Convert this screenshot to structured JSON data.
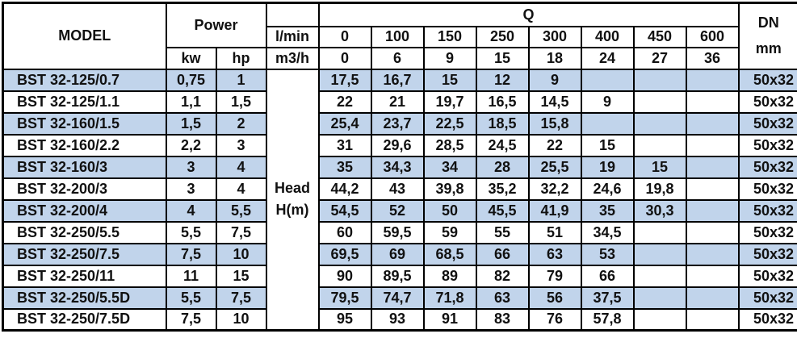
{
  "colors": {
    "row_alt": "#c1d4eb",
    "border": "#000000",
    "text": "#111111",
    "background": "#ffffff"
  },
  "table": {
    "header": {
      "model": "MODEL",
      "power": "Power",
      "kw": "kw",
      "hp": "hp",
      "lmin": "l/min",
      "m3h": "m3/h",
      "q": "Q",
      "dn": "DN\nmm",
      "head": "Head\nH(m)",
      "q_lmin": [
        "0",
        "100",
        "150",
        "250",
        "300",
        "400",
        "450",
        "600"
      ],
      "q_m3h": [
        "0",
        "6",
        "9",
        "15",
        "18",
        "24",
        "27",
        "36"
      ]
    },
    "rows": [
      {
        "model": "BST 32-125/0.7",
        "kw": "0,75",
        "hp": "1",
        "q": [
          "17,5",
          "16,7",
          "15",
          "12",
          "9",
          "",
          "",
          ""
        ],
        "dn": "50x32"
      },
      {
        "model": "BST 32-125/1.1",
        "kw": "1,1",
        "hp": "1,5",
        "q": [
          "22",
          "21",
          "19,7",
          "16,5",
          "14,5",
          "9",
          "",
          ""
        ],
        "dn": "50x32"
      },
      {
        "model": "BST 32-160/1.5",
        "kw": "1,5",
        "hp": "2",
        "q": [
          "25,4",
          "23,7",
          "22,5",
          "18,5",
          "15,8",
          "",
          "",
          ""
        ],
        "dn": "50x32"
      },
      {
        "model": "BST 32-160/2.2",
        "kw": "2,2",
        "hp": "3",
        "q": [
          "31",
          "29,6",
          "28,5",
          "24,5",
          "22",
          "15",
          "",
          ""
        ],
        "dn": "50x32"
      },
      {
        "model": "BST 32-160/3",
        "kw": "3",
        "hp": "4",
        "q": [
          "35",
          "34,3",
          "34",
          "28",
          "25,5",
          "19",
          "15",
          ""
        ],
        "dn": "50x32"
      },
      {
        "model": "BST 32-200/3",
        "kw": "3",
        "hp": "4",
        "q": [
          "44,2",
          "43",
          "39,8",
          "35,2",
          "32,2",
          "24,6",
          "19,8",
          ""
        ],
        "dn": "50x32"
      },
      {
        "model": "BST 32-200/4",
        "kw": "4",
        "hp": "5,5",
        "q": [
          "54,5",
          "52",
          "50",
          "45,5",
          "41,9",
          "35",
          "30,3",
          ""
        ],
        "dn": "50x32"
      },
      {
        "model": "BST 32-250/5.5",
        "kw": "5,5",
        "hp": "7,5",
        "q": [
          "60",
          "59,5",
          "59",
          "55",
          "51",
          "34,5",
          "",
          ""
        ],
        "dn": "50x32"
      },
      {
        "model": "BST 32-250/7.5",
        "kw": "7,5",
        "hp": "10",
        "q": [
          "69,5",
          "69",
          "68,5",
          "66",
          "63",
          "53",
          "",
          ""
        ],
        "dn": "50x32"
      },
      {
        "model": "BST 32-250/11",
        "kw": "11",
        "hp": "15",
        "q": [
          "90",
          "89,5",
          "89",
          "82",
          "79",
          "66",
          "",
          ""
        ],
        "dn": "50x32"
      },
      {
        "model": "BST 32-250/5.5D",
        "kw": "5,5",
        "hp": "7,5",
        "q": [
          "79,5",
          "74,7",
          "71,8",
          "63",
          "56",
          "37,5",
          "",
          ""
        ],
        "dn": "50x32"
      },
      {
        "model": "BST 32-250/7.5D",
        "kw": "7,5",
        "hp": "10",
        "q": [
          "95",
          "93",
          "91",
          "83",
          "76",
          "57,8",
          "",
          ""
        ],
        "dn": "50x32"
      }
    ]
  }
}
